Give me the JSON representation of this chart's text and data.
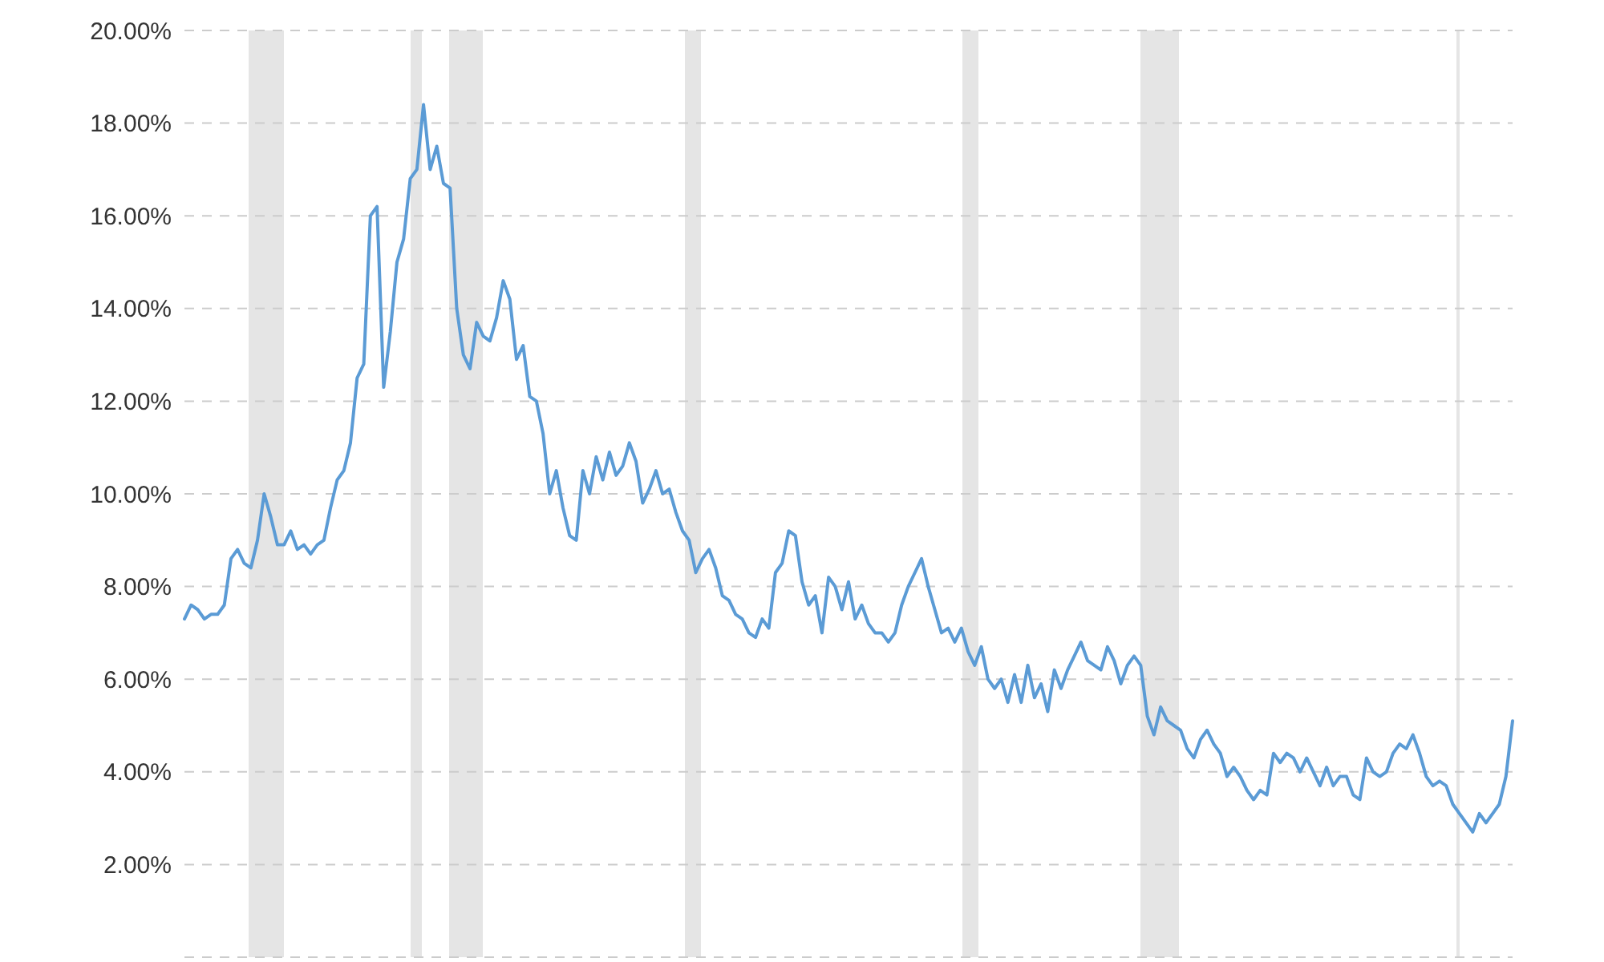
{
  "chart_data": {
    "type": "line",
    "categories": [
      null,
      null,
      null,
      null,
      null,
      null,
      null,
      null,
      null,
      null,
      null,
      null,
      null,
      null,
      null,
      null,
      null,
      null,
      null,
      null,
      null,
      null,
      null,
      null,
      null,
      null,
      null,
      null,
      null,
      null,
      null,
      null,
      null,
      null,
      null,
      null,
      null,
      null,
      null,
      null,
      null,
      null,
      null,
      null,
      null,
      null,
      null,
      null,
      null,
      null,
      null,
      null,
      null,
      null,
      null,
      null,
      null,
      null,
      null,
      null,
      null,
      null,
      null,
      null,
      null,
      null,
      null,
      null,
      null,
      null,
      null,
      null,
      null,
      null,
      null,
      null,
      null,
      null,
      null,
      null,
      null,
      null,
      null,
      null,
      null,
      null,
      null,
      null,
      null,
      null,
      null,
      null,
      null,
      null,
      null,
      null,
      null,
      null,
      null,
      null,
      null,
      null,
      null,
      null,
      null,
      null,
      null,
      null,
      null,
      null,
      null,
      null,
      null,
      null,
      null,
      null,
      null,
      null,
      null,
      null,
      null,
      null,
      null,
      null,
      null,
      null,
      null,
      null,
      null,
      null,
      null,
      null,
      null,
      null,
      null,
      null,
      null,
      null,
      null,
      null,
      null,
      null,
      null,
      null,
      null,
      null,
      null,
      null,
      null,
      null,
      null,
      null,
      null,
      null,
      null,
      null,
      null,
      null,
      null,
      null,
      null,
      null,
      null,
      null,
      null,
      null,
      null,
      null,
      null,
      null,
      null,
      null,
      null,
      null,
      null,
      null,
      null,
      null,
      null,
      null,
      null,
      null,
      null,
      null,
      null,
      null,
      null,
      null,
      null,
      null,
      null,
      null,
      null,
      null,
      null,
      null,
      null,
      null,
      null,
      null,
      null
    ],
    "series": [
      {
        "color": "#5b9bd5",
        "values": [
          7.3,
          7.6,
          7.5,
          7.3,
          7.4,
          7.4,
          7.6,
          8.6,
          8.8,
          8.5,
          8.4,
          9.0,
          10.0,
          9.5,
          8.9,
          8.9,
          9.2,
          8.8,
          8.9,
          8.7,
          8.9,
          9.0,
          9.7,
          10.3,
          10.5,
          11.1,
          12.5,
          12.8,
          16.0,
          16.2,
          12.3,
          13.5,
          15.0,
          15.5,
          16.8,
          17.0,
          18.4,
          17.0,
          17.5,
          16.7,
          16.6,
          14.0,
          13.0,
          12.7,
          13.7,
          13.4,
          13.3,
          13.8,
          14.6,
          14.2,
          12.9,
          13.2,
          12.1,
          12.0,
          11.3,
          10.0,
          10.5,
          9.7,
          9.1,
          9.0,
          10.5,
          10.0,
          10.8,
          10.3,
          10.9,
          10.4,
          10.6,
          11.1,
          10.7,
          9.8,
          10.1,
          10.5,
          10.0,
          10.1,
          9.6,
          9.2,
          9.0,
          8.3,
          8.6,
          8.8,
          8.4,
          7.8,
          7.7,
          7.4,
          7.3,
          7.0,
          6.9,
          7.3,
          7.1,
          8.3,
          8.5,
          9.2,
          9.1,
          8.1,
          7.6,
          7.8,
          7.0,
          8.2,
          8.0,
          7.5,
          8.1,
          7.3,
          7.6,
          7.2,
          7.0,
          7.0,
          6.8,
          7.0,
          7.6,
          8.0,
          8.3,
          8.6,
          8.0,
          7.5,
          7.0,
          7.1,
          6.8,
          7.1,
          6.6,
          6.3,
          6.7,
          6.0,
          5.8,
          6.0,
          5.5,
          6.1,
          5.5,
          6.3,
          5.6,
          5.9,
          5.3,
          6.2,
          5.8,
          6.2,
          6.5,
          6.8,
          6.4,
          6.3,
          6.2,
          6.7,
          6.4,
          5.9,
          6.3,
          6.5,
          6.3,
          5.2,
          4.8,
          5.4,
          5.1,
          5.0,
          4.9,
          4.5,
          4.3,
          4.7,
          4.9,
          4.6,
          4.4,
          3.9,
          4.1,
          3.9,
          3.6,
          3.4,
          3.6,
          3.5,
          4.4,
          4.2,
          4.4,
          4.3,
          4.0,
          4.3,
          4.0,
          3.7,
          4.1,
          3.7,
          3.9,
          3.9,
          3.5,
          3.4,
          4.3,
          4.0,
          3.9,
          4.0,
          4.4,
          4.6,
          4.5,
          4.8,
          4.4,
          3.9,
          3.7,
          3.8,
          3.7,
          3.3,
          3.1,
          2.9,
          2.7,
          3.1,
          2.9,
          3.1,
          3.3,
          3.9,
          5.1
        ]
      }
    ],
    "ylim": [
      0,
      20
    ],
    "yticks": [
      {
        "value": 0,
        "label": null
      },
      {
        "value": 2,
        "label": "2.00%"
      },
      {
        "value": 4,
        "label": "4.00%"
      },
      {
        "value": 6,
        "label": "6.00%"
      },
      {
        "value": 8,
        "label": "8.00%"
      },
      {
        "value": 10,
        "label": "10.00%"
      },
      {
        "value": 12,
        "label": "12.00%"
      },
      {
        "value": 14,
        "label": "14.00%"
      },
      {
        "value": 16,
        "label": "16.00%"
      },
      {
        "value": 18,
        "label": "18.00%"
      },
      {
        "value": 20,
        "label": "20.00%"
      }
    ],
    "grid": "y",
    "tick_labels": "y"
  }
}
